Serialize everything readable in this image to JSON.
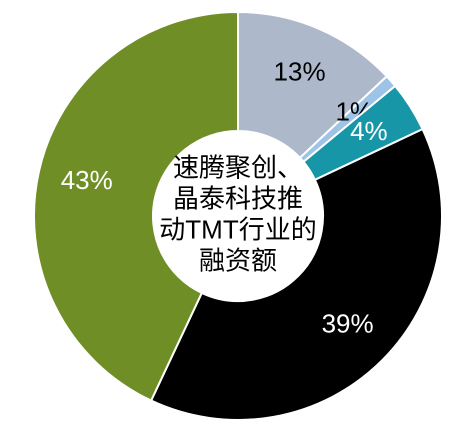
{
  "chart_data": {
    "type": "donut",
    "title": [
      "速腾聚创、",
      "晶泰科技推",
      "动TMT行业的",
      "融资额"
    ],
    "values": [
      13,
      1,
      4,
      39,
      43
    ],
    "value_labels": [
      "13%",
      "1%",
      "4%",
      "39%",
      "43%"
    ],
    "colors": [
      "#adb9ca",
      "#9dc3e6",
      "#1796a8",
      "#000000",
      "#6f8f26"
    ],
    "label_colors": [
      "#000000",
      "#000000",
      "#ffffff",
      "#ffffff",
      "#ffffff"
    ]
  }
}
